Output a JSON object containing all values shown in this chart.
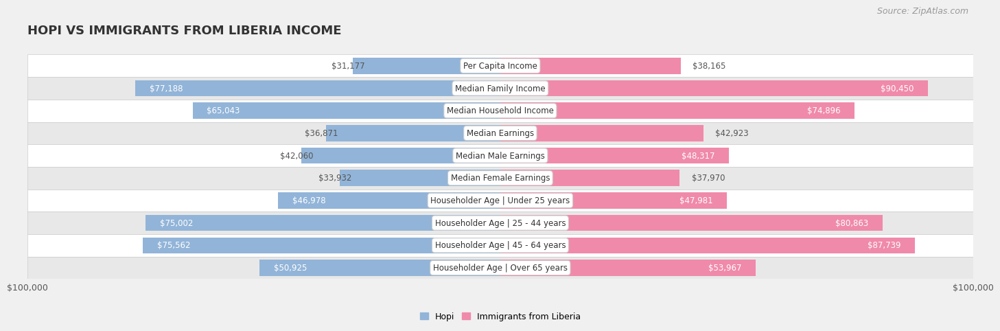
{
  "title": "HOPI VS IMMIGRANTS FROM LIBERIA INCOME",
  "source": "Source: ZipAtlas.com",
  "categories": [
    "Per Capita Income",
    "Median Family Income",
    "Median Household Income",
    "Median Earnings",
    "Median Male Earnings",
    "Median Female Earnings",
    "Householder Age | Under 25 years",
    "Householder Age | 25 - 44 years",
    "Householder Age | 45 - 64 years",
    "Householder Age | Over 65 years"
  ],
  "hopi_values": [
    31177,
    77188,
    65043,
    36871,
    42060,
    33932,
    46978,
    75002,
    75562,
    50925
  ],
  "liberia_values": [
    38165,
    90450,
    74896,
    42923,
    48317,
    37970,
    47981,
    80863,
    87739,
    53967
  ],
  "hopi_labels": [
    "$31,177",
    "$77,188",
    "$65,043",
    "$36,871",
    "$42,060",
    "$33,932",
    "$46,978",
    "$75,002",
    "$75,562",
    "$50,925"
  ],
  "liberia_labels": [
    "$38,165",
    "$90,450",
    "$74,896",
    "$42,923",
    "$48,317",
    "$37,970",
    "$47,981",
    "$80,863",
    "$87,739",
    "$53,967"
  ],
  "hopi_color": "#92b4d8",
  "liberia_color": "#f08aaa",
  "max_value": 100000,
  "background_color": "#f0f0f0",
  "row_even_color": "#ffffff",
  "row_odd_color": "#e8e8e8",
  "row_border_color": "#cccccc",
  "xlabel_left": "$100,000",
  "xlabel_right": "$100,000",
  "legend_hopi": "Hopi",
  "legend_liberia": "Immigrants from Liberia",
  "title_fontsize": 13,
  "source_fontsize": 9,
  "bar_fontsize": 8.5,
  "category_fontsize": 8.5,
  "hopi_inside_threshold": 45000,
  "liberia_inside_threshold": 45000
}
